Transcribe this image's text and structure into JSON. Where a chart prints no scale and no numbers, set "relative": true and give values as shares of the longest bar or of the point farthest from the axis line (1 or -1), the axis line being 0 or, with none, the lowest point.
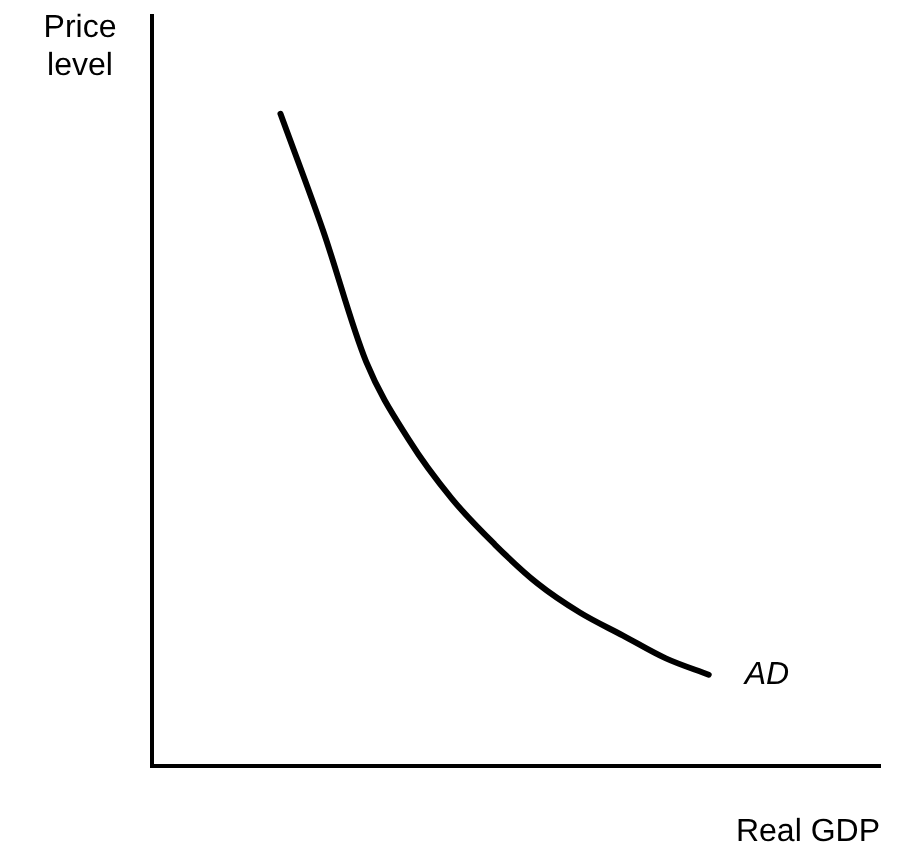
{
  "chart_data": {
    "type": "line",
    "relative": true,
    "xlabel": "Real GDP",
    "ylabel": "Price level",
    "grid": false,
    "legend": false,
    "marker": "none",
    "line_style": "solid",
    "categories": [
      null,
      null,
      null,
      null,
      null,
      null,
      null,
      null,
      null,
      null,
      null,
      null,
      null,
      null,
      null,
      null,
      null,
      null
    ],
    "series": [
      {
        "name": "AD",
        "color": "#000000",
        "values": [
          null,
          null,
          null,
          1,
          0.82,
          0.62,
          0.5,
          0.41,
          0.34,
          0.28,
          0.235,
          0.2,
          0.165,
          0.14,
          null,
          null,
          null,
          null
        ]
      }
    ]
  }
}
